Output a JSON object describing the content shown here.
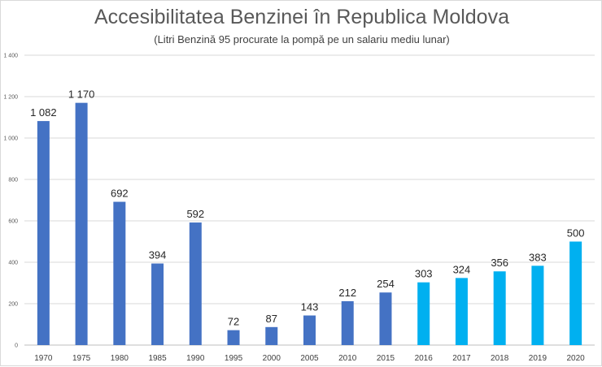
{
  "chart_data": {
    "type": "bar",
    "title": "Accesibilitatea Benzinei în Republica Moldova",
    "subtitle": "(Litri Benzină 95 procurate la pompă pe un salariu mediu lunar)",
    "categories": [
      "1970",
      "1975",
      "1980",
      "1985",
      "1990",
      "1995",
      "2000",
      "2005",
      "2010",
      "2015",
      "2016",
      "2017",
      "2018",
      "2019",
      "2020"
    ],
    "values": [
      1082,
      1170,
      692,
      394,
      592,
      72,
      87,
      143,
      212,
      254,
      303,
      324,
      356,
      383,
      500
    ],
    "value_labels": [
      "1 082",
      "1 170",
      "692",
      "394",
      "592",
      "72",
      "87",
      "143",
      "212",
      "254",
      "303",
      "324",
      "356",
      "383",
      "500"
    ],
    "ylim": [
      0,
      1400
    ],
    "yticks": [
      0,
      200,
      400,
      600,
      800,
      1000,
      1200,
      1400
    ],
    "ytick_labels": [
      "0",
      "200",
      "400",
      "600",
      "800",
      "1 000",
      "1 200",
      "1 400"
    ],
    "xlabel": "",
    "ylabel": "",
    "grid": true,
    "legend": "none",
    "colors": {
      "primary": "#4472c4",
      "highlight": "#00b0f0",
      "grid": "#d9d9d9",
      "axis": "#bfbfbf"
    },
    "highlight_categories": [
      "2016",
      "2017",
      "2018",
      "2019",
      "2020"
    ]
  }
}
